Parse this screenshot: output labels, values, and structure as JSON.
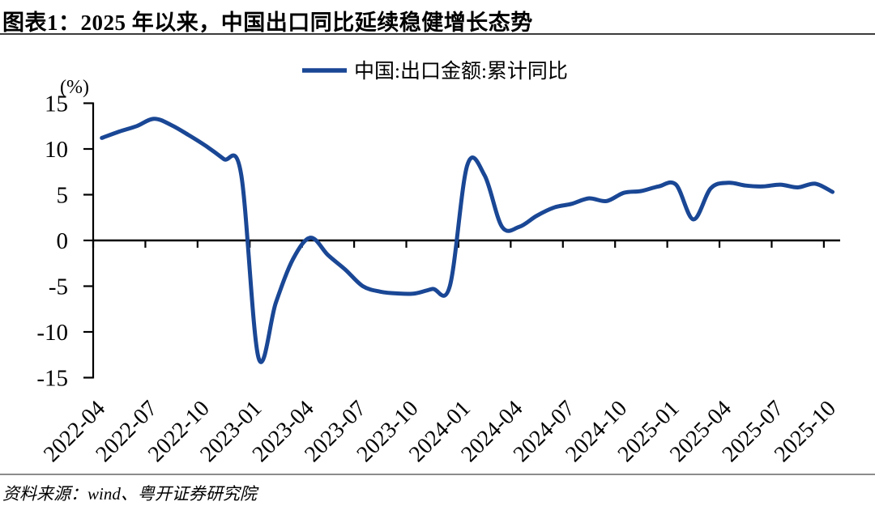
{
  "header": {
    "title": "图表1：2025 年以来，中国出口同比延续稳健增长态势"
  },
  "legend": {
    "label": "中国:出口金额:累计同比"
  },
  "axis": {
    "unit_label": "(%)"
  },
  "footer": {
    "source": "资料来源：wind、粤开证券研究院"
  },
  "colors": {
    "line": "#1a4795",
    "axis": "#000000",
    "title_rule": "#3c3c3c",
    "footer_rule": "#8c8c8c"
  },
  "chart_data": {
    "type": "line",
    "title": "图表1：2025 年以来，中国出口同比延续稳健增长态势",
    "xlabel": "",
    "ylabel": "(%)",
    "ylim": [
      -15,
      15
    ],
    "y_ticks": [
      15,
      10,
      5,
      0,
      -5,
      -10,
      -15
    ],
    "grid": false,
    "legend_position": "top-center",
    "x_tick_labels": [
      "2022-04",
      "2022-07",
      "2022-10",
      "2023-01",
      "2023-04",
      "2023-07",
      "2023-10",
      "2024-01",
      "2024-04",
      "2024-07",
      "2024-10",
      "2025-01",
      "2025-04",
      "2025-07",
      "2025-10"
    ],
    "series": [
      {
        "name": "中国:出口金额:累计同比",
        "color": "#1a4795",
        "x": [
          "2022-04",
          "2022-05",
          "2022-06",
          "2022-07",
          "2022-08",
          "2022-09",
          "2022-10",
          "2022-11",
          "2022-12",
          "2023-01",
          "2023-02",
          "2023-03",
          "2023-04",
          "2023-05",
          "2023-06",
          "2023-07",
          "2023-08",
          "2023-09",
          "2023-10",
          "2023-11",
          "2023-12",
          "2024-01",
          "2024-02",
          "2024-03",
          "2024-04",
          "2024-05",
          "2024-06",
          "2024-07",
          "2024-08",
          "2024-09",
          "2024-10",
          "2024-11",
          "2024-12",
          "2025-01",
          "2025-02",
          "2025-03",
          "2025-04",
          "2025-05",
          "2025-06",
          "2025-07",
          "2025-08",
          "2025-09",
          "2025-10"
        ],
        "values": [
          11.2,
          11.9,
          12.5,
          13.3,
          12.6,
          11.5,
          10.3,
          8.9,
          7.3,
          -12.8,
          -6.8,
          -2.0,
          0.3,
          -1.6,
          -3.2,
          -5.0,
          -5.6,
          -5.8,
          -5.8,
          -5.3,
          -5.0,
          8.2,
          7.1,
          1.5,
          1.5,
          2.7,
          3.6,
          4.0,
          4.6,
          4.3,
          5.2,
          5.4,
          5.9,
          6.1,
          2.3,
          5.7,
          6.3,
          6.0,
          5.9,
          6.1,
          5.8,
          6.2,
          5.3
        ]
      }
    ]
  }
}
